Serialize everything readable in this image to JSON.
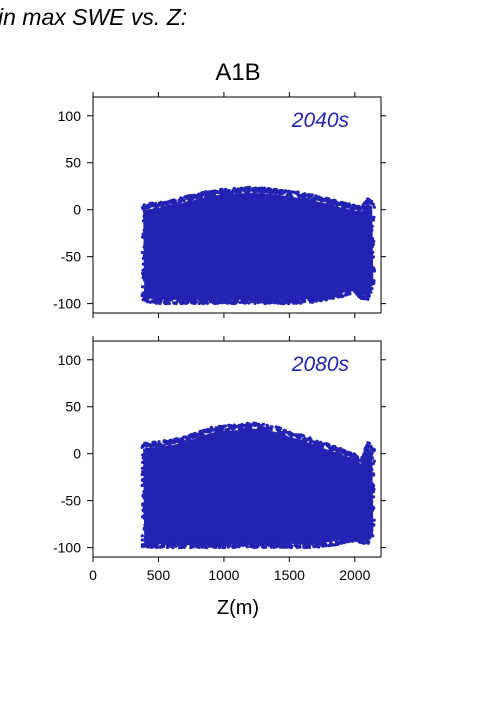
{
  "page": {
    "title": "in max SWE vs. Z:"
  },
  "scenario_title": "A1B",
  "chart_data": [
    {
      "type": "scatter",
      "title": "A1B",
      "label": "2040s",
      "xlabel": "Z(m)",
      "ylabel": "",
      "xlim": [
        0,
        2200
      ],
      "ylim": [
        -110,
        120
      ],
      "xticks": [
        0,
        500,
        1000,
        1500,
        2000
      ],
      "yticks": [
        -100,
        -50,
        0,
        50,
        100
      ],
      "grid": false,
      "color": "#2323b3",
      "envelope": {
        "x": [
          375,
          400,
          500,
          600,
          700,
          800,
          900,
          1000,
          1100,
          1200,
          1300,
          1400,
          1500,
          1600,
          1700,
          1800,
          1900,
          2000,
          2050,
          2100,
          2150
        ],
        "y_max": [
          5,
          6,
          8,
          10,
          14,
          17,
          21,
          22,
          23,
          24,
          23,
          22,
          20,
          18,
          15,
          12,
          8,
          5,
          4,
          12,
          8
        ],
        "y_min": [
          -95,
          -98,
          -100,
          -100,
          -100,
          -100,
          -100,
          -100,
          -100,
          -100,
          -100,
          -100,
          -100,
          -100,
          -98,
          -96,
          -93,
          -88,
          -95,
          -96,
          -78
        ]
      }
    },
    {
      "type": "scatter",
      "title": "",
      "label": "2080s",
      "xlabel": "Z(m)",
      "ylabel": "",
      "xlim": [
        0,
        2200
      ],
      "ylim": [
        -110,
        120
      ],
      "xticks": [
        0,
        500,
        1000,
        1500,
        2000
      ],
      "yticks": [
        -100,
        -50,
        0,
        50,
        100
      ],
      "grid": false,
      "color": "#2323b3",
      "envelope": {
        "x": [
          375,
          400,
          500,
          600,
          700,
          800,
          900,
          1000,
          1100,
          1200,
          1300,
          1400,
          1500,
          1600,
          1700,
          1800,
          1900,
          2000,
          2050,
          2100,
          2150
        ],
        "y_max": [
          10,
          12,
          13,
          15,
          18,
          23,
          28,
          30,
          31,
          33,
          32,
          29,
          24,
          20,
          15,
          10,
          5,
          0,
          -5,
          13,
          5
        ],
        "y_min": [
          -100,
          -100,
          -100,
          -100,
          -100,
          -100,
          -100,
          -100,
          -100,
          -100,
          -100,
          -100,
          -100,
          -100,
          -100,
          -98,
          -96,
          -93,
          -95,
          -96,
          -85
        ]
      }
    }
  ]
}
